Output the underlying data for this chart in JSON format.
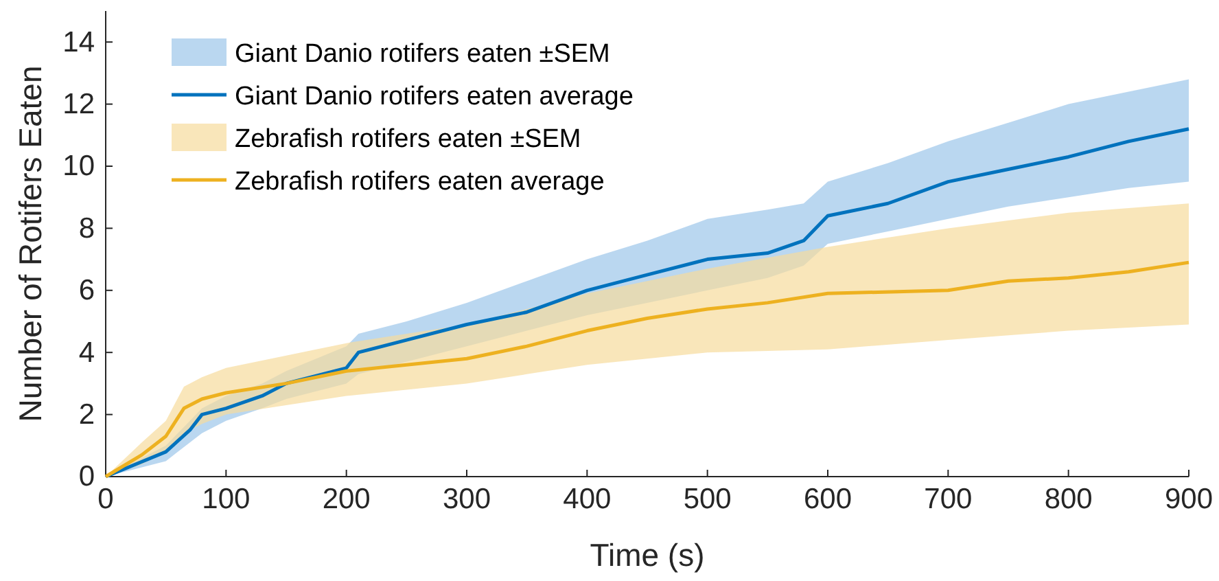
{
  "chart_data": {
    "type": "line",
    "xlabel": "Time (s)",
    "ylabel": "Number of Rotifers Eaten",
    "xlim": [
      0,
      900
    ],
    "xticks": [
      0,
      100,
      200,
      300,
      400,
      500,
      600,
      700,
      800,
      900
    ],
    "ylim": [
      0,
      15
    ],
    "yticks": [
      0,
      2,
      4,
      6,
      8,
      10,
      12,
      14
    ],
    "grid": false,
    "legend": "top left",
    "series": [
      {
        "name": "Giant Danio rotifers eaten ±SEM",
        "type": "area",
        "color": "#9cc6ea"
      },
      {
        "name": "Giant Danio rotifers eaten average",
        "type": "line",
        "color": "#0072bd",
        "x": [
          0,
          50,
          70,
          80,
          100,
          130,
          150,
          200,
          210,
          250,
          300,
          350,
          400,
          450,
          500,
          550,
          580,
          600,
          650,
          700,
          750,
          800,
          850,
          900
        ],
        "values": [
          0,
          0.8,
          1.5,
          2.0,
          2.2,
          2.6,
          3.0,
          3.5,
          4.0,
          4.4,
          4.9,
          5.3,
          6.0,
          6.5,
          7.0,
          7.2,
          7.6,
          8.4,
          8.8,
          9.5,
          9.9,
          10.3,
          10.8,
          11.2
        ],
        "lower": [
          0,
          0.5,
          1.1,
          1.4,
          1.8,
          2.2,
          2.5,
          3.0,
          3.3,
          3.7,
          4.2,
          4.7,
          5.2,
          5.6,
          6.0,
          6.4,
          6.8,
          7.5,
          7.9,
          8.3,
          8.7,
          9.0,
          9.3,
          9.5
        ],
        "upper": [
          0,
          1.0,
          1.8,
          2.2,
          2.6,
          3.0,
          3.4,
          4.2,
          4.6,
          5.0,
          5.6,
          6.3,
          7.0,
          7.6,
          8.3,
          8.6,
          8.8,
          9.5,
          10.1,
          10.8,
          11.4,
          12.0,
          12.4,
          12.8
        ]
      },
      {
        "name": "Zebrafish rotifers eaten ±SEM",
        "type": "area",
        "color": "#f7dc9c"
      },
      {
        "name": "Zebrafish rotifers eaten average",
        "type": "line",
        "color": "#edb120",
        "x": [
          0,
          30,
          50,
          65,
          80,
          100,
          150,
          200,
          250,
          300,
          350,
          400,
          450,
          500,
          550,
          600,
          700,
          750,
          800,
          850,
          900
        ],
        "values": [
          0,
          0.7,
          1.3,
          2.2,
          2.5,
          2.7,
          3.0,
          3.4,
          3.6,
          3.8,
          4.2,
          4.7,
          5.1,
          5.4,
          5.6,
          5.9,
          6.0,
          6.3,
          6.4,
          6.6,
          6.9
        ],
        "lower": [
          0,
          0.4,
          0.8,
          1.4,
          1.7,
          2.0,
          2.3,
          2.6,
          2.8,
          3.0,
          3.3,
          3.6,
          3.8,
          4.0,
          4.05,
          4.1,
          4.4,
          4.55,
          4.7,
          4.8,
          4.9
        ],
        "upper": [
          0,
          1.1,
          1.8,
          2.9,
          3.2,
          3.5,
          3.9,
          4.3,
          4.6,
          4.9,
          5.4,
          5.9,
          6.3,
          6.7,
          7.05,
          7.4,
          8.0,
          8.25,
          8.5,
          8.65,
          8.8
        ]
      }
    ]
  }
}
